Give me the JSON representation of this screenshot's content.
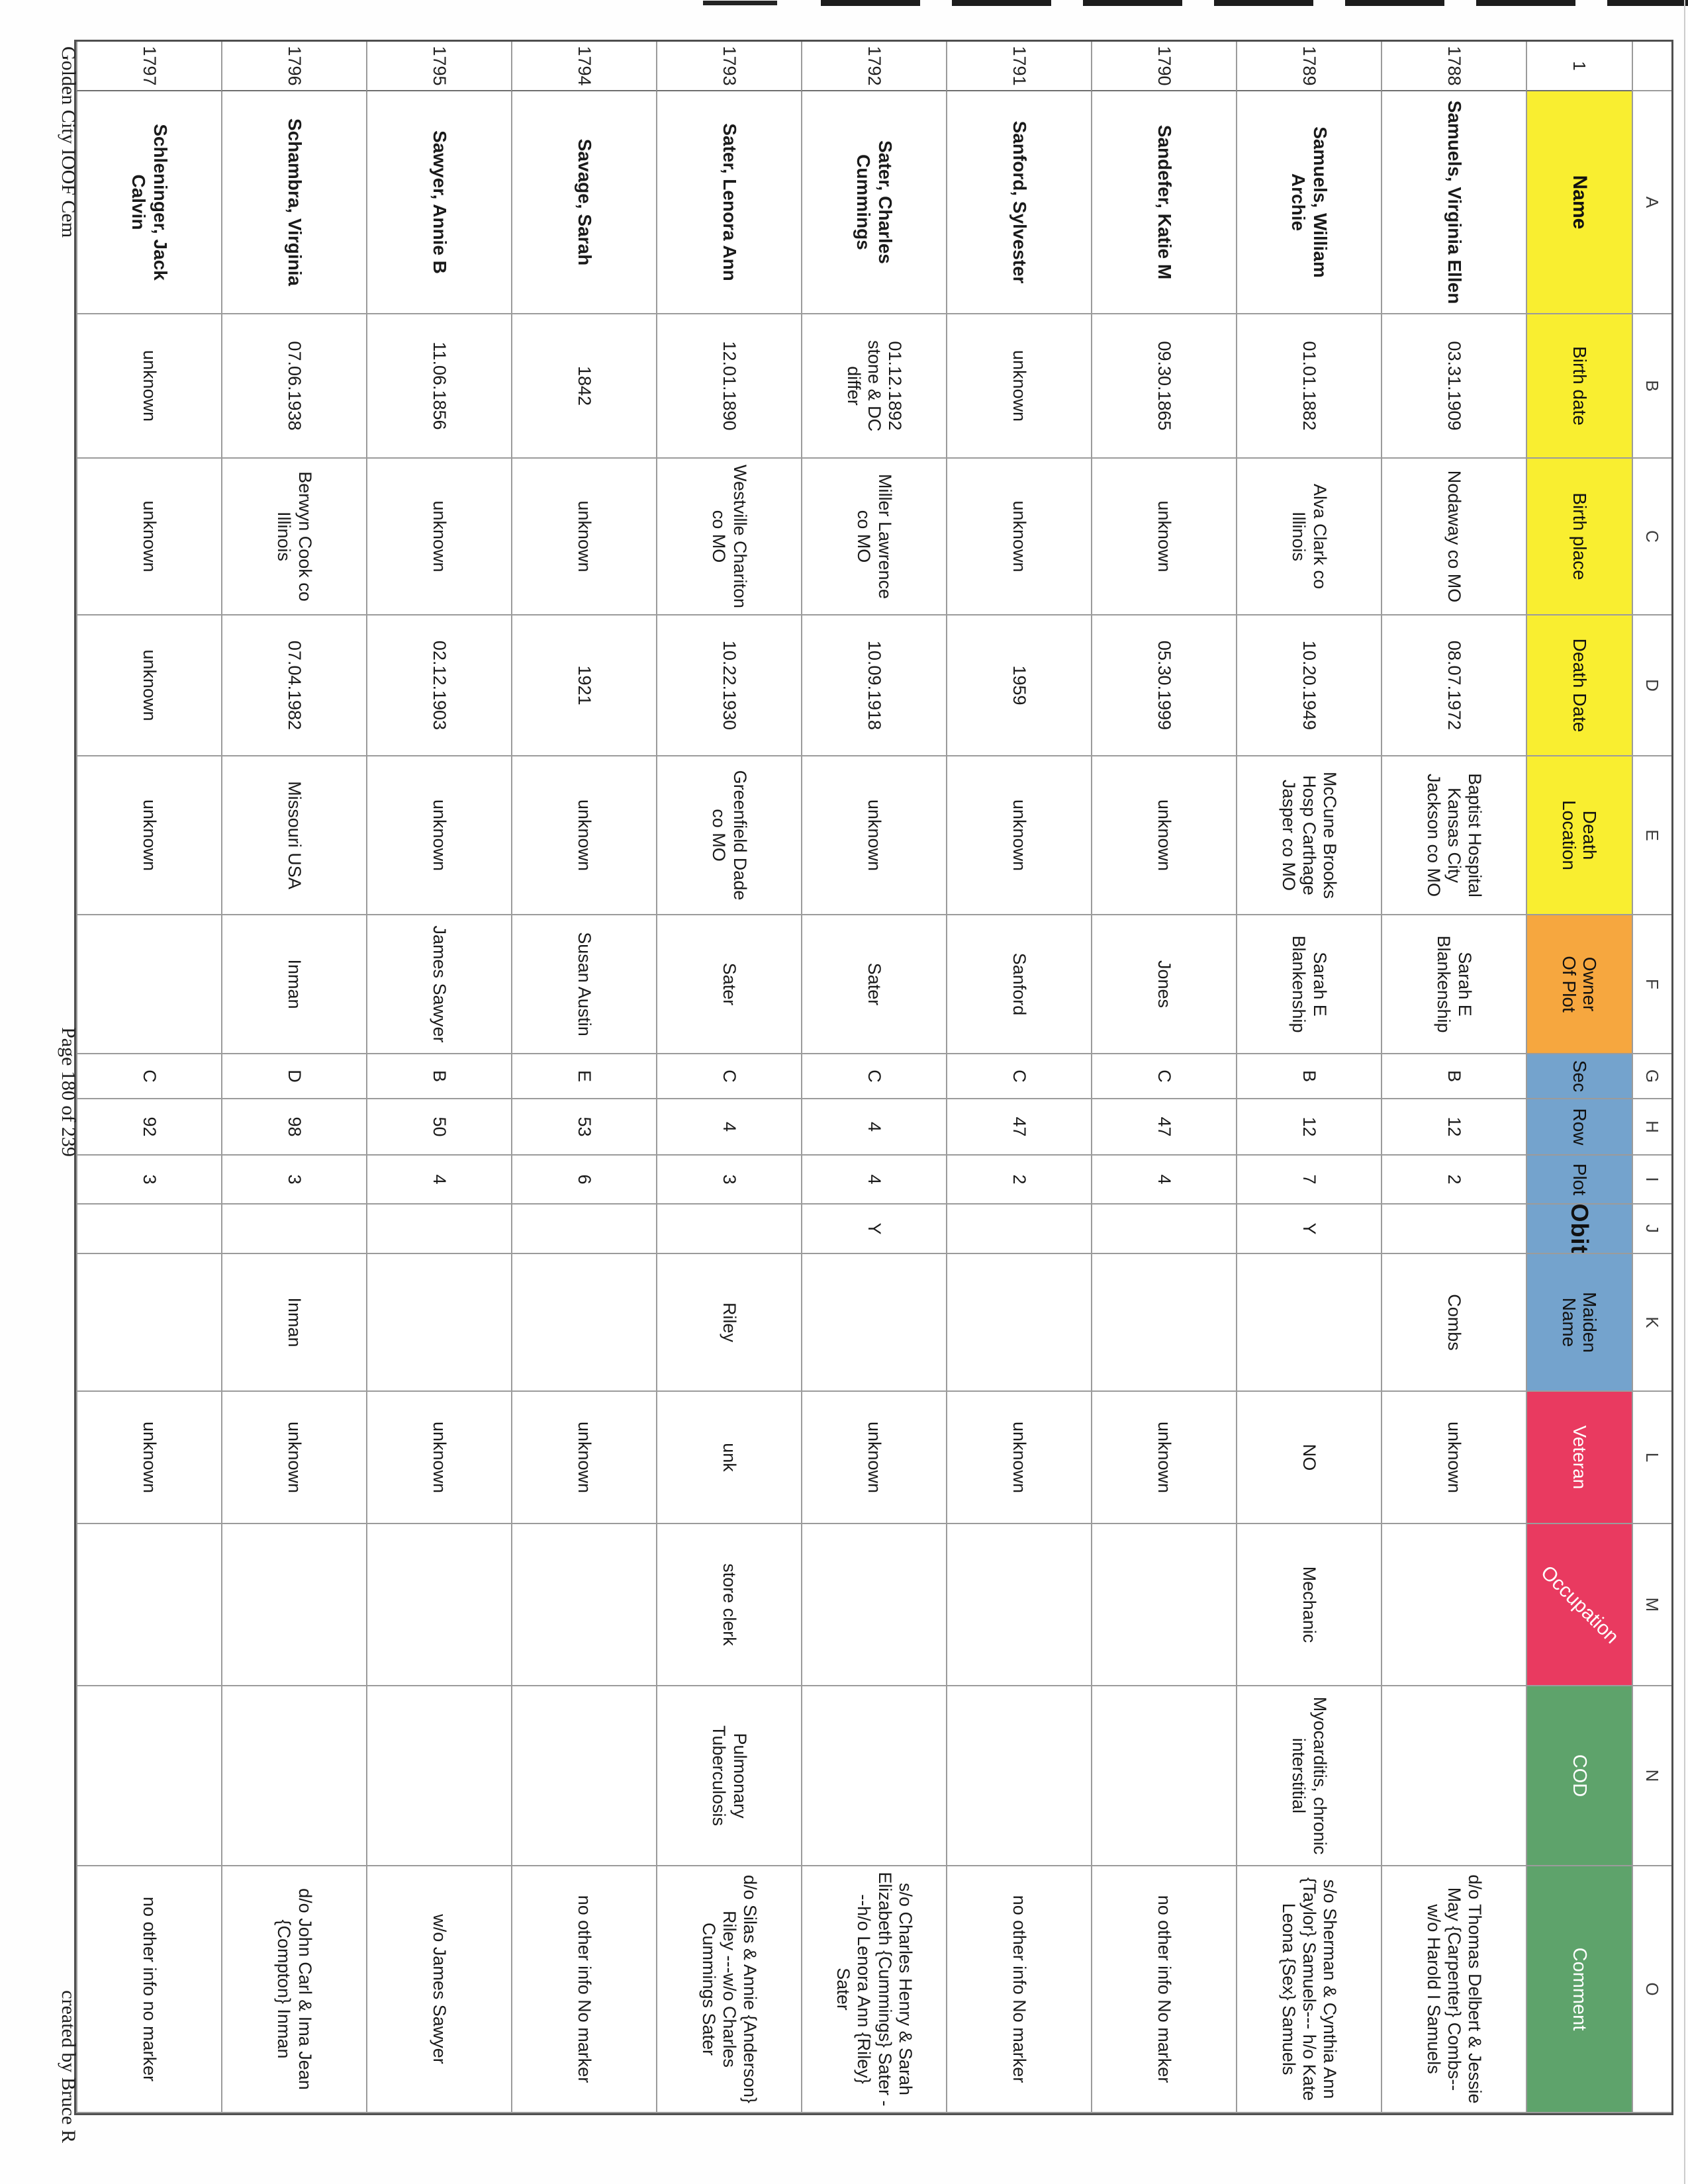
{
  "page": {
    "footer_left": "Golden City IOOF Cem",
    "footer_center": "Page 180 of 239",
    "footer_right": "created by Bruce R"
  },
  "accent_colors": {
    "yellow_header": "#f9ee30",
    "orange_header": "#f6a73f",
    "blue_header": "#74a3cd",
    "red_header": "#e93a60",
    "green_header": "#5ea36b",
    "grid_line": "#9b9b9b"
  },
  "spreadsheet": {
    "corner_row_label": "1",
    "columns": [
      {
        "letter": "A",
        "label": "Name",
        "bg": "#f9ee30",
        "fg": "#111111"
      },
      {
        "letter": "B",
        "label": "Birth date",
        "bg": "#f9ee30",
        "fg": "#111111"
      },
      {
        "letter": "C",
        "label": "Birth place",
        "bg": "#f9ee30",
        "fg": "#111111"
      },
      {
        "letter": "D",
        "label": "Death Date",
        "bg": "#f9ee30",
        "fg": "#111111"
      },
      {
        "letter": "E",
        "label": "Death\nLocation",
        "bg": "#f9ee30",
        "fg": "#111111"
      },
      {
        "letter": "F",
        "label": "Owner\nOf Plot",
        "bg": "#f6a73f",
        "fg": "#111111"
      },
      {
        "letter": "G",
        "label": "Sec",
        "bg": "#74a3cd",
        "fg": "#111111"
      },
      {
        "letter": "H",
        "label": "Row",
        "bg": "#74a3cd",
        "fg": "#111111"
      },
      {
        "letter": "I",
        "label": "Plot",
        "bg": "#74a3cd",
        "fg": "#111111"
      },
      {
        "letter": "J",
        "label": "Obit",
        "bg": "#74a3cd",
        "fg": "#111111"
      },
      {
        "letter": "K",
        "label": "Maiden\nName",
        "bg": "#74a3cd",
        "fg": "#111111"
      },
      {
        "letter": "L",
        "label": "Veteran",
        "bg": "#e93a60",
        "fg": "#ffffff"
      },
      {
        "letter": "M",
        "label": "Occupation",
        "bg": "#e93a60",
        "fg": "#ffffff"
      },
      {
        "letter": "N",
        "label": "COD",
        "bg": "#5ea36b",
        "fg": "#ffffff"
      },
      {
        "letter": "O",
        "label": "Comment",
        "bg": "#5ea36b",
        "fg": "#ffffff"
      }
    ],
    "records": [
      {
        "row": "1788",
        "cells": [
          "Samuels, Virginia Ellen",
          "03.31.1909",
          "Nodaway co MO",
          "08.07.1972",
          "Baptist Hospital Kansas City Jackson co MO",
          "Sarah E Blankenship",
          "B",
          "12",
          "2",
          "",
          "Combs",
          "unknown",
          "",
          "",
          "d/o Thomas Delbert & Jessie May {Carpenter} Combs-- w/o Harold I Samuels"
        ]
      },
      {
        "row": "1789",
        "cells": [
          "Samuels, William Archie",
          "01.01.1882",
          "Alva Clark co Illinois",
          "10.20.1949",
          "McCune Brooks Hosp Carthage Jasper co MO",
          "Sarah E Blankenship",
          "B",
          "12",
          "7",
          "Y",
          "",
          "NO",
          "Mechanic",
          "Myocarditis, chronic interstitial",
          "s/o Sherman & Cynthia Ann {Taylor} Samuels--- h/o Kate Leona {Sex} Samuels"
        ]
      },
      {
        "row": "1790",
        "cells": [
          "Sandefer, Katie M",
          "09.30.1865",
          "unknown",
          "05.30.1999",
          "unknown",
          "Jones",
          "C",
          "47",
          "4",
          "",
          "",
          "unknown",
          "",
          "",
          "no other info No marker"
        ]
      },
      {
        "row": "1791",
        "cells": [
          "Sanford, Sylvester",
          "unknown",
          "unknown",
          "1959",
          "unknown",
          "Sanford",
          "C",
          "47",
          "2",
          "",
          "",
          "unknown",
          "",
          "",
          "no other info No marker"
        ]
      },
      {
        "row": "1792",
        "cells": [
          "Sater, Charles Cummings",
          "01.12.1892 stone & DC differ",
          "Miller Lawrence co MO",
          "10.09.1918",
          "unknown",
          "Sater",
          "C",
          "4",
          "4",
          "Y",
          "",
          "unknown",
          "",
          "",
          "s/o Charles Henry & Sarah Elizabeth {Cummings} Sater ---h/o Lenora Ann {Riley} Sater"
        ]
      },
      {
        "row": "1793",
        "cells": [
          "Sater, Lenora Ann",
          "12.01.1890",
          "Westville Chariton co MO",
          "10.22.1930",
          "Greenfield Dade co MO",
          "Sater",
          "C",
          "4",
          "3",
          "",
          "Riley",
          "unk",
          "store clerk",
          "Pulmonary Tuberculosis",
          "d/o Silas & Annie {Anderson} Riley ---w/o Charles Cummings Sater"
        ]
      },
      {
        "row": "1794",
        "cells": [
          "Savage, Sarah",
          "1842",
          "unknown",
          "1921",
          "unknown",
          "Susan Austin",
          "E",
          "53",
          "6",
          "",
          "",
          "unknown",
          "",
          "",
          "no other info No marker"
        ]
      },
      {
        "row": "1795",
        "cells": [
          "Sawyer, Annie B",
          "11.06.1856",
          "unknown",
          "02.12.1903",
          "unknown",
          "James Sawyer",
          "B",
          "50",
          "4",
          "",
          "",
          "unknown",
          "",
          "",
          "w/o James Sawyer"
        ]
      },
      {
        "row": "1796",
        "cells": [
          "Schambra, Virginia",
          "07.06.1938",
          "Berwyn Cook co Illinois",
          "07.04.1982",
          "Missouri USA",
          "Inman",
          "D",
          "98",
          "3",
          "",
          "Inman",
          "unknown",
          "",
          "",
          "d/o John Carl & Ima Jean {Compton} Inman"
        ]
      },
      {
        "row": "1797",
        "cells": [
          "Schleninger, Jack Calvin",
          "unknown",
          "unknown",
          "unknown",
          "unknown",
          "",
          "C",
          "92",
          "3",
          "",
          "",
          "unknown",
          "",
          "",
          "no other info no marker"
        ]
      }
    ]
  }
}
